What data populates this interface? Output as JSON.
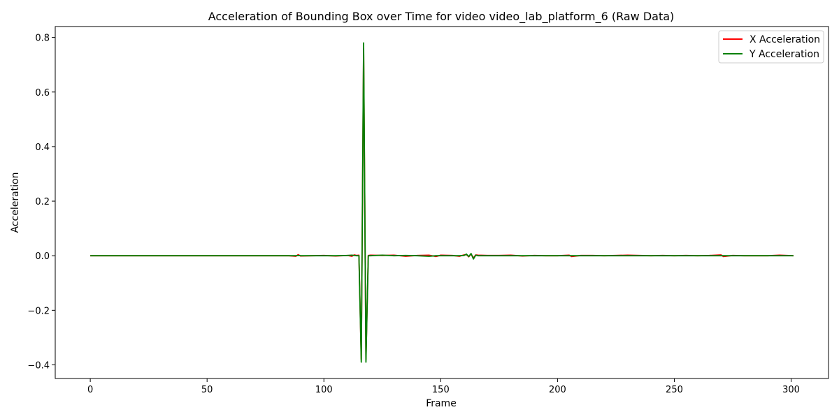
{
  "chart_data": {
    "type": "line",
    "title": "Acceleration of Bounding Box over Time for video video_lab_platform_6 (Raw Data)",
    "xlabel": "Frame",
    "ylabel": "Acceleration",
    "xlim": [
      -15,
      316
    ],
    "ylim": [
      -0.45,
      0.84
    ],
    "xticks": [
      0,
      50,
      100,
      150,
      200,
      250,
      300
    ],
    "yticks": [
      -0.4,
      -0.2,
      0.0,
      0.2,
      0.4,
      0.6,
      0.8
    ],
    "xtick_labels": [
      "0",
      "50",
      "100",
      "150",
      "200",
      "250",
      "300"
    ],
    "ytick_labels": [
      "−0.4",
      "−0.2",
      "0.0",
      "0.2",
      "0.4",
      "0.6",
      "0.8"
    ],
    "grid": false,
    "legend_position": "top-right",
    "x": [
      0,
      10,
      20,
      30,
      40,
      50,
      60,
      70,
      80,
      85,
      88,
      89,
      90,
      95,
      100,
      105,
      110,
      112,
      113,
      114,
      115,
      116,
      117,
      118,
      119,
      120,
      125,
      130,
      135,
      140,
      145,
      148,
      150,
      155,
      158,
      160,
      161,
      162,
      163,
      164,
      165,
      166,
      170,
      175,
      180,
      185,
      190,
      195,
      200,
      205,
      206,
      210,
      215,
      220,
      225,
      230,
      235,
      240,
      245,
      250,
      255,
      260,
      265,
      270,
      271,
      275,
      280,
      285,
      290,
      295,
      301
    ],
    "series": [
      {
        "name": "X Acceleration",
        "color": "#ff0000",
        "values": [
          0,
          0,
          0,
          0,
          0,
          0,
          0,
          0,
          0,
          0,
          -0.002,
          0.004,
          -0.001,
          0,
          0.001,
          -0.001,
          0.001,
          -0.002,
          0.003,
          0.001,
          0.002,
          -0.38,
          0.76,
          -0.38,
          0.001,
          0.002,
          0.001,
          0.002,
          -0.002,
          0.001,
          0.002,
          -0.003,
          0.002,
          0.001,
          -0.002,
          0.003,
          0.004,
          -0.004,
          0.006,
          -0.008,
          0.003,
          0.002,
          0.001,
          0.001,
          0.002,
          -0.001,
          0.001,
          0,
          0,
          0.002,
          -0.003,
          0.001,
          0.001,
          0,
          0.001,
          0.002,
          0.001,
          0,
          0.001,
          0,
          0.001,
          0,
          0.001,
          0.003,
          -0.003,
          0.001,
          0,
          0,
          0,
          0.002,
          0
        ]
      },
      {
        "name": "Y Acceleration",
        "color": "#008000",
        "values": [
          0,
          0,
          0,
          0,
          0,
          0,
          0,
          0,
          0,
          0,
          0,
          0.001,
          0,
          0,
          0,
          0,
          0.001,
          0.002,
          0.001,
          0,
          0,
          -0.39,
          0.78,
          -0.39,
          0,
          0,
          0.002,
          0,
          0.001,
          0,
          -0.002,
          0,
          0,
          0,
          0,
          0.001,
          0.006,
          -0.003,
          0.008,
          -0.012,
          0.002,
          0,
          0,
          0,
          0,
          0,
          0,
          0,
          0,
          0,
          0,
          0,
          0,
          0,
          0,
          0,
          0,
          0,
          0,
          0,
          0,
          0,
          0,
          0,
          0,
          0,
          0,
          0,
          0,
          0,
          0
        ]
      }
    ]
  }
}
